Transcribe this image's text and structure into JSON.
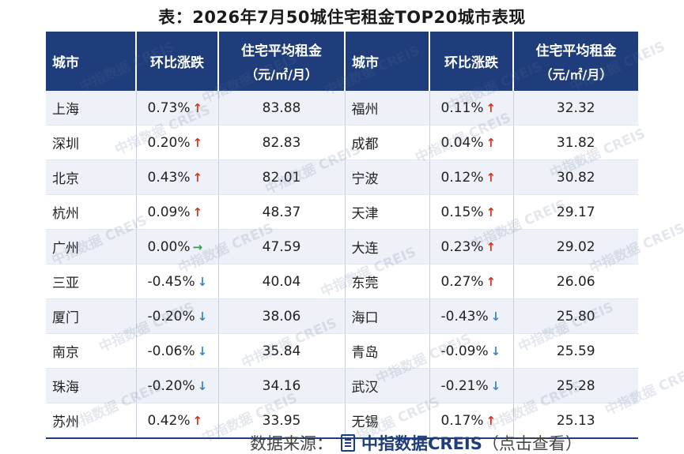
{
  "title": "表：2026年7月50城住宅租金TOP20城市表现",
  "headers": {
    "city": "城市",
    "change": "环比涨跌",
    "rent_line1": "住宅平均租金",
    "rent_line2": "（元/㎡/月）"
  },
  "rows": [
    {
      "l_city": "上海",
      "l_change": "0.73%",
      "l_dir": "up",
      "l_rent": "83.88",
      "r_city": "福州",
      "r_change": "0.11%",
      "r_dir": "up",
      "r_rent": "32.32"
    },
    {
      "l_city": "深圳",
      "l_change": "0.20%",
      "l_dir": "up",
      "l_rent": "82.83",
      "r_city": "成都",
      "r_change": "0.04%",
      "r_dir": "up",
      "r_rent": "31.82"
    },
    {
      "l_city": "北京",
      "l_change": "0.43%",
      "l_dir": "up",
      "l_rent": "82.01",
      "r_city": "宁波",
      "r_change": "0.12%",
      "r_dir": "up",
      "r_rent": "30.82"
    },
    {
      "l_city": "杭州",
      "l_change": "0.09%",
      "l_dir": "up",
      "l_rent": "48.37",
      "r_city": "天津",
      "r_change": "0.15%",
      "r_dir": "up",
      "r_rent": "29.17"
    },
    {
      "l_city": "广州",
      "l_change": "0.00%",
      "l_dir": "flat",
      "l_rent": "47.59",
      "r_city": "大连",
      "r_change": "0.23%",
      "r_dir": "up",
      "r_rent": "29.02"
    },
    {
      "l_city": "三亚",
      "l_change": "-0.45%",
      "l_dir": "down",
      "l_rent": "40.04",
      "r_city": "东莞",
      "r_change": "0.27%",
      "r_dir": "up",
      "r_rent": "26.06"
    },
    {
      "l_city": "厦门",
      "l_change": "-0.20%",
      "l_dir": "down",
      "l_rent": "38.06",
      "r_city": "海口",
      "r_change": "-0.43%",
      "r_dir": "down",
      "r_rent": "25.80"
    },
    {
      "l_city": "南京",
      "l_change": "-0.06%",
      "l_dir": "down",
      "l_rent": "35.84",
      "r_city": "青岛",
      "r_change": "-0.09%",
      "r_dir": "down",
      "r_rent": "25.59"
    },
    {
      "l_city": "珠海",
      "l_change": "-0.20%",
      "l_dir": "down",
      "l_rent": "34.16",
      "r_city": "武汉",
      "r_change": "-0.21%",
      "r_dir": "down",
      "r_rent": "25.28"
    },
    {
      "l_city": "苏州",
      "l_change": "0.42%",
      "l_dir": "up",
      "l_rent": "33.95",
      "r_city": "无锡",
      "r_change": "0.17%",
      "r_dir": "up",
      "r_rent": "25.13"
    }
  ],
  "arrows": {
    "up": "↑",
    "down": "↓",
    "flat": "→"
  },
  "watermark": "中指数据 CREIS",
  "source": {
    "label": "数据来源：",
    "brand": "中指数据CREIS",
    "suffix": "（点击查看）"
  },
  "colors": {
    "header_bg": "#1f3d7a",
    "up": "#d4351c",
    "down": "#3a86c8",
    "flat": "#2fa14a"
  }
}
